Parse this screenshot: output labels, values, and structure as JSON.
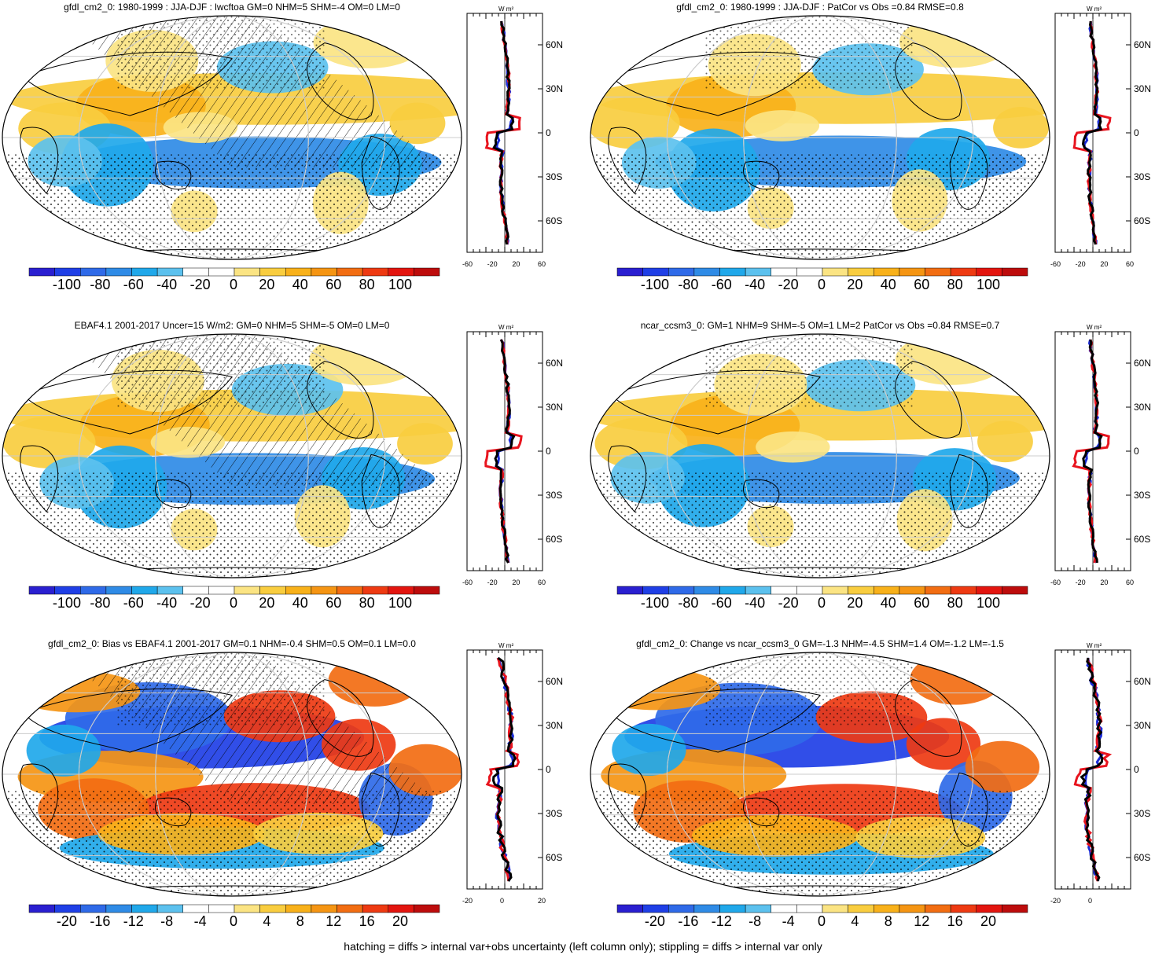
{
  "panels": [
    {
      "id": "p1",
      "title": "gfdl_cm2_0: 1980-1999 : JJA-DJF : lwcftoa GM=0 NHM=5 SHM=-4 OM=0 LM=0",
      "colorbar": {
        "labels": [
          "-100",
          "-80",
          "-60",
          "-40",
          "-20",
          "0",
          "20",
          "40",
          "60",
          "80",
          "100"
        ]
      },
      "zonal": {
        "unit": "W m²",
        "lat_labels": [
          "60N",
          "30N",
          "0",
          "30S",
          "60S"
        ],
        "x_labels": [
          "-60",
          "-20",
          "20",
          "60"
        ]
      },
      "hatched": true,
      "scheme": "small"
    },
    {
      "id": "p2",
      "title": "gfdl_cm2_0: 1980-1999 : JJA-DJF : PatCor vs Obs =0.84 RMSE=0.8",
      "colorbar": {
        "labels": [
          "-100",
          "-80",
          "-60",
          "-40",
          "-20",
          "0",
          "20",
          "40",
          "60",
          "80",
          "100"
        ]
      },
      "zonal": {
        "unit": "W m²",
        "lat_labels": [
          "60N",
          "30N",
          "0",
          "30S",
          "60S"
        ],
        "x_labels": [
          "-60",
          "-20",
          "20",
          "60"
        ]
      },
      "hatched": false,
      "scheme": "small"
    },
    {
      "id": "p3",
      "title": "EBAF4.1 2001-2017 Uncer=15 W/m2: GM=0 NHM=5 SHM=-5 OM=0 LM=0",
      "colorbar": {
        "labels": [
          "-100",
          "-80",
          "-60",
          "-40",
          "-20",
          "0",
          "20",
          "40",
          "60",
          "80",
          "100"
        ]
      },
      "zonal": {
        "unit": "W m²",
        "lat_labels": [
          "60N",
          "30N",
          "0",
          "30S",
          "60S"
        ],
        "x_labels": [
          "-60",
          "-20",
          "20",
          "60"
        ]
      },
      "hatched": true,
      "scheme": "small"
    },
    {
      "id": "p4",
      "title": "ncar_ccsm3_0: GM=1 NHM=9 SHM=-5 OM=1 LM=2 PatCor vs Obs =0.84 RMSE=0.7",
      "colorbar": {
        "labels": [
          "-100",
          "-80",
          "-60",
          "-40",
          "-20",
          "0",
          "20",
          "40",
          "60",
          "80",
          "100"
        ]
      },
      "zonal": {
        "unit": "W m²",
        "lat_labels": [
          "60N",
          "30N",
          "0",
          "30S",
          "60S"
        ],
        "x_labels": [
          "-60",
          "-20",
          "20",
          "60"
        ]
      },
      "hatched": false,
      "scheme": "small"
    },
    {
      "id": "p5",
      "title": "gfdl_cm2_0: Bias vs EBAF4.1 2001-2017 GM=0.1 NHM=-0.4 SHM=0.5 OM=0.1 LM=0.0",
      "colorbar": {
        "labels": [
          "-20",
          "-16",
          "-12",
          "-8",
          "-4",
          "0",
          "4",
          "8",
          "12",
          "16",
          "20"
        ]
      },
      "zonal": {
        "unit": "W m²",
        "lat_labels": [
          "60N",
          "30N",
          "0",
          "30S",
          "60S"
        ],
        "x_labels": [
          "-20",
          "0",
          "20"
        ]
      },
      "hatched": true,
      "scheme": "strong"
    },
    {
      "id": "p6",
      "title": "gfdl_cm2_0: Change vs ncar_ccsm3_0 GM=-1.3 NHM=-4.5 SHM=1.4 OM=-1.2 LM=-1.5",
      "colorbar": {
        "labels": [
          "-20",
          "-16",
          "-12",
          "-8",
          "-4",
          "0",
          "4",
          "8",
          "12",
          "16",
          "20"
        ]
      },
      "zonal": {
        "unit": "W m²",
        "lat_labels": [
          "60N",
          "30N",
          "0",
          "30S",
          "60S"
        ],
        "x_labels": [
          "-20",
          "0"
        ]
      },
      "hatched": false,
      "scheme": "strong"
    }
  ],
  "colors": {
    "palette": [
      "#2a1fd0",
      "#1f3fe6",
      "#2f6ae8",
      "#2f8be6",
      "#20a8ea",
      "#5cc1ee",
      "#ffffff",
      "#ffffff",
      "#fbe483",
      "#f9cd3f",
      "#f8b11a",
      "#f59513",
      "#f26d12",
      "#ee3a12",
      "#e3150f",
      "#bd0c0c"
    ],
    "zonal_model": "#000000",
    "zonal_obs": "#e8141e",
    "zonal_alt": "#1a2bd6"
  },
  "footer": "hatching = diffs > internal var+obs uncertainty (left column only); stippling = diffs > internal var only"
}
